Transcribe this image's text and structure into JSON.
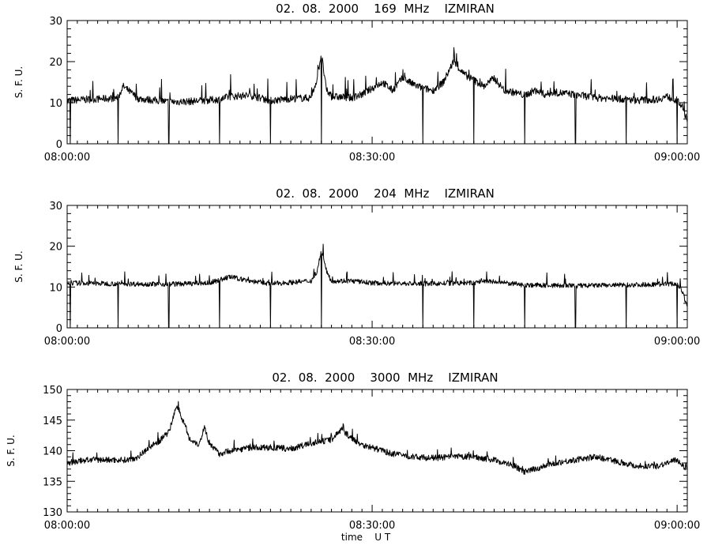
{
  "chart_data": [
    {
      "type": "line",
      "title": "02.  08.  2000    169  MHz    IZMIRAN",
      "ylabel": "S. F. U.",
      "xlabel": "",
      "x_range": [
        "08:00:00",
        "09:01:00"
      ],
      "ylim": [
        0,
        30
      ],
      "y_ticks": [
        0,
        10,
        20,
        30
      ],
      "x_tick_labels": [
        "08:00:00",
        "08:30:00",
        "09:00:00"
      ],
      "series": [
        {
          "x": [
            "08:00",
            "08:02",
            "08:04",
            "08:05",
            "08:05.5",
            "08:07",
            "08:10",
            "08:12",
            "08:15",
            "08:16",
            "08:18",
            "08:20",
            "08:22",
            "08:24",
            "08:24.6",
            "08:25",
            "08:25.5",
            "08:26",
            "08:28",
            "08:29",
            "08:30",
            "08:31",
            "08:32",
            "08:33",
            "08:34",
            "08:35",
            "08:36",
            "08:37",
            "08:37.6",
            "08:38",
            "08:39",
            "08:40",
            "08:41",
            "08:42",
            "08:43",
            "08:44",
            "08:45",
            "08:46",
            "08:47",
            "08:48",
            "08:50",
            "08:52",
            "08:54",
            "08:56",
            "08:58",
            "08:59",
            "09:00",
            "09:00.5",
            "09:01"
          ],
          "values": [
            10.5,
            10.8,
            11,
            11.2,
            14,
            11,
            10.2,
            10.3,
            10.8,
            11.5,
            11.8,
            10.5,
            11,
            11.2,
            16,
            22,
            13,
            11.5,
            11.2,
            12,
            13.5,
            15,
            13,
            16,
            14.5,
            13.5,
            13,
            15,
            18,
            20,
            17,
            15.5,
            14,
            16,
            13,
            12.5,
            11.8,
            13,
            12,
            12.5,
            12,
            11.2,
            11,
            10.6,
            10.8,
            11.5,
            10.5,
            9,
            5
          ]
        }
      ],
      "dropouts": [
        "08:00.3",
        "08:05",
        "08:10",
        "08:15",
        "08:20",
        "08:25",
        "08:35",
        "08:40",
        "08:45",
        "08:50",
        "08:55",
        "09:00"
      ]
    },
    {
      "type": "line",
      "title": "02.  08.  2000    204  MHz    IZMIRAN",
      "ylabel": "S. F. U.",
      "xlabel": "",
      "x_range": [
        "08:00:00",
        "09:01:00"
      ],
      "ylim": [
        0,
        30
      ],
      "y_ticks": [
        0,
        10,
        20,
        30
      ],
      "x_tick_labels": [
        "08:00:00",
        "08:30:00",
        "09:00:00"
      ],
      "series": [
        {
          "x": [
            "08:00",
            "08:05",
            "08:10",
            "08:14",
            "08:16",
            "08:18",
            "08:20",
            "08:24",
            "08:24.6",
            "08:25",
            "08:25.5",
            "08:26",
            "08:28",
            "08:30",
            "08:35",
            "08:40",
            "08:41",
            "08:45",
            "08:50",
            "08:55",
            "09:00",
            "09:00.5",
            "09:01"
          ],
          "values": [
            11,
            10.8,
            10.7,
            11,
            12.5,
            11.5,
            10.8,
            11.5,
            14,
            19,
            14,
            11.5,
            11.5,
            11,
            10.8,
            11,
            11.5,
            10.5,
            10.3,
            10.5,
            10.8,
            9,
            5
          ]
        }
      ],
      "dropouts": [
        "08:00.3",
        "08:05",
        "08:10",
        "08:15",
        "08:20",
        "08:25",
        "08:35",
        "08:40",
        "08:45",
        "08:50",
        "08:55",
        "09:00"
      ]
    },
    {
      "type": "line",
      "title": "02.  08.  2000    3000  MHz    IZMIRAN",
      "ylabel": "S. F. U.",
      "xlabel": "time    U T",
      "x_range": [
        "08:00:00",
        "09:01:00"
      ],
      "ylim": [
        130,
        150
      ],
      "y_ticks": [
        130,
        135,
        140,
        145,
        150
      ],
      "x_tick_labels": [
        "08:00:00",
        "08:30:00",
        "09:00:00"
      ],
      "series": [
        {
          "x": [
            "08:00",
            "08:02",
            "08:04",
            "08:06",
            "08:07",
            "08:08",
            "08:09",
            "08:10",
            "08:10.8",
            "08:11.5",
            "08:12",
            "08:13",
            "08:13.5",
            "08:14",
            "08:15",
            "08:16",
            "08:18",
            "08:20",
            "08:22",
            "08:24",
            "08:26",
            "08:27",
            "08:28",
            "08:29",
            "08:30",
            "08:32",
            "08:34",
            "08:36",
            "08:38",
            "08:40",
            "08:42",
            "08:44",
            "08:45",
            "08:46",
            "08:47",
            "08:48",
            "08:50",
            "08:52",
            "08:54",
            "08:56",
            "08:58",
            "09:00",
            "09:01"
          ],
          "values": [
            138,
            138.5,
            138.5,
            138.5,
            139,
            140.5,
            141.5,
            143,
            147.5,
            144.5,
            142,
            141,
            144,
            141,
            139.5,
            140,
            140.5,
            140.5,
            140.3,
            141.2,
            141.8,
            143.5,
            142,
            141,
            140.5,
            139.5,
            139,
            138.8,
            139,
            139,
            138.5,
            137.5,
            136.5,
            137,
            137.5,
            138,
            138.5,
            139,
            138.3,
            137.5,
            137.5,
            138.5,
            137
          ]
        }
      ],
      "dropouts": []
    }
  ]
}
